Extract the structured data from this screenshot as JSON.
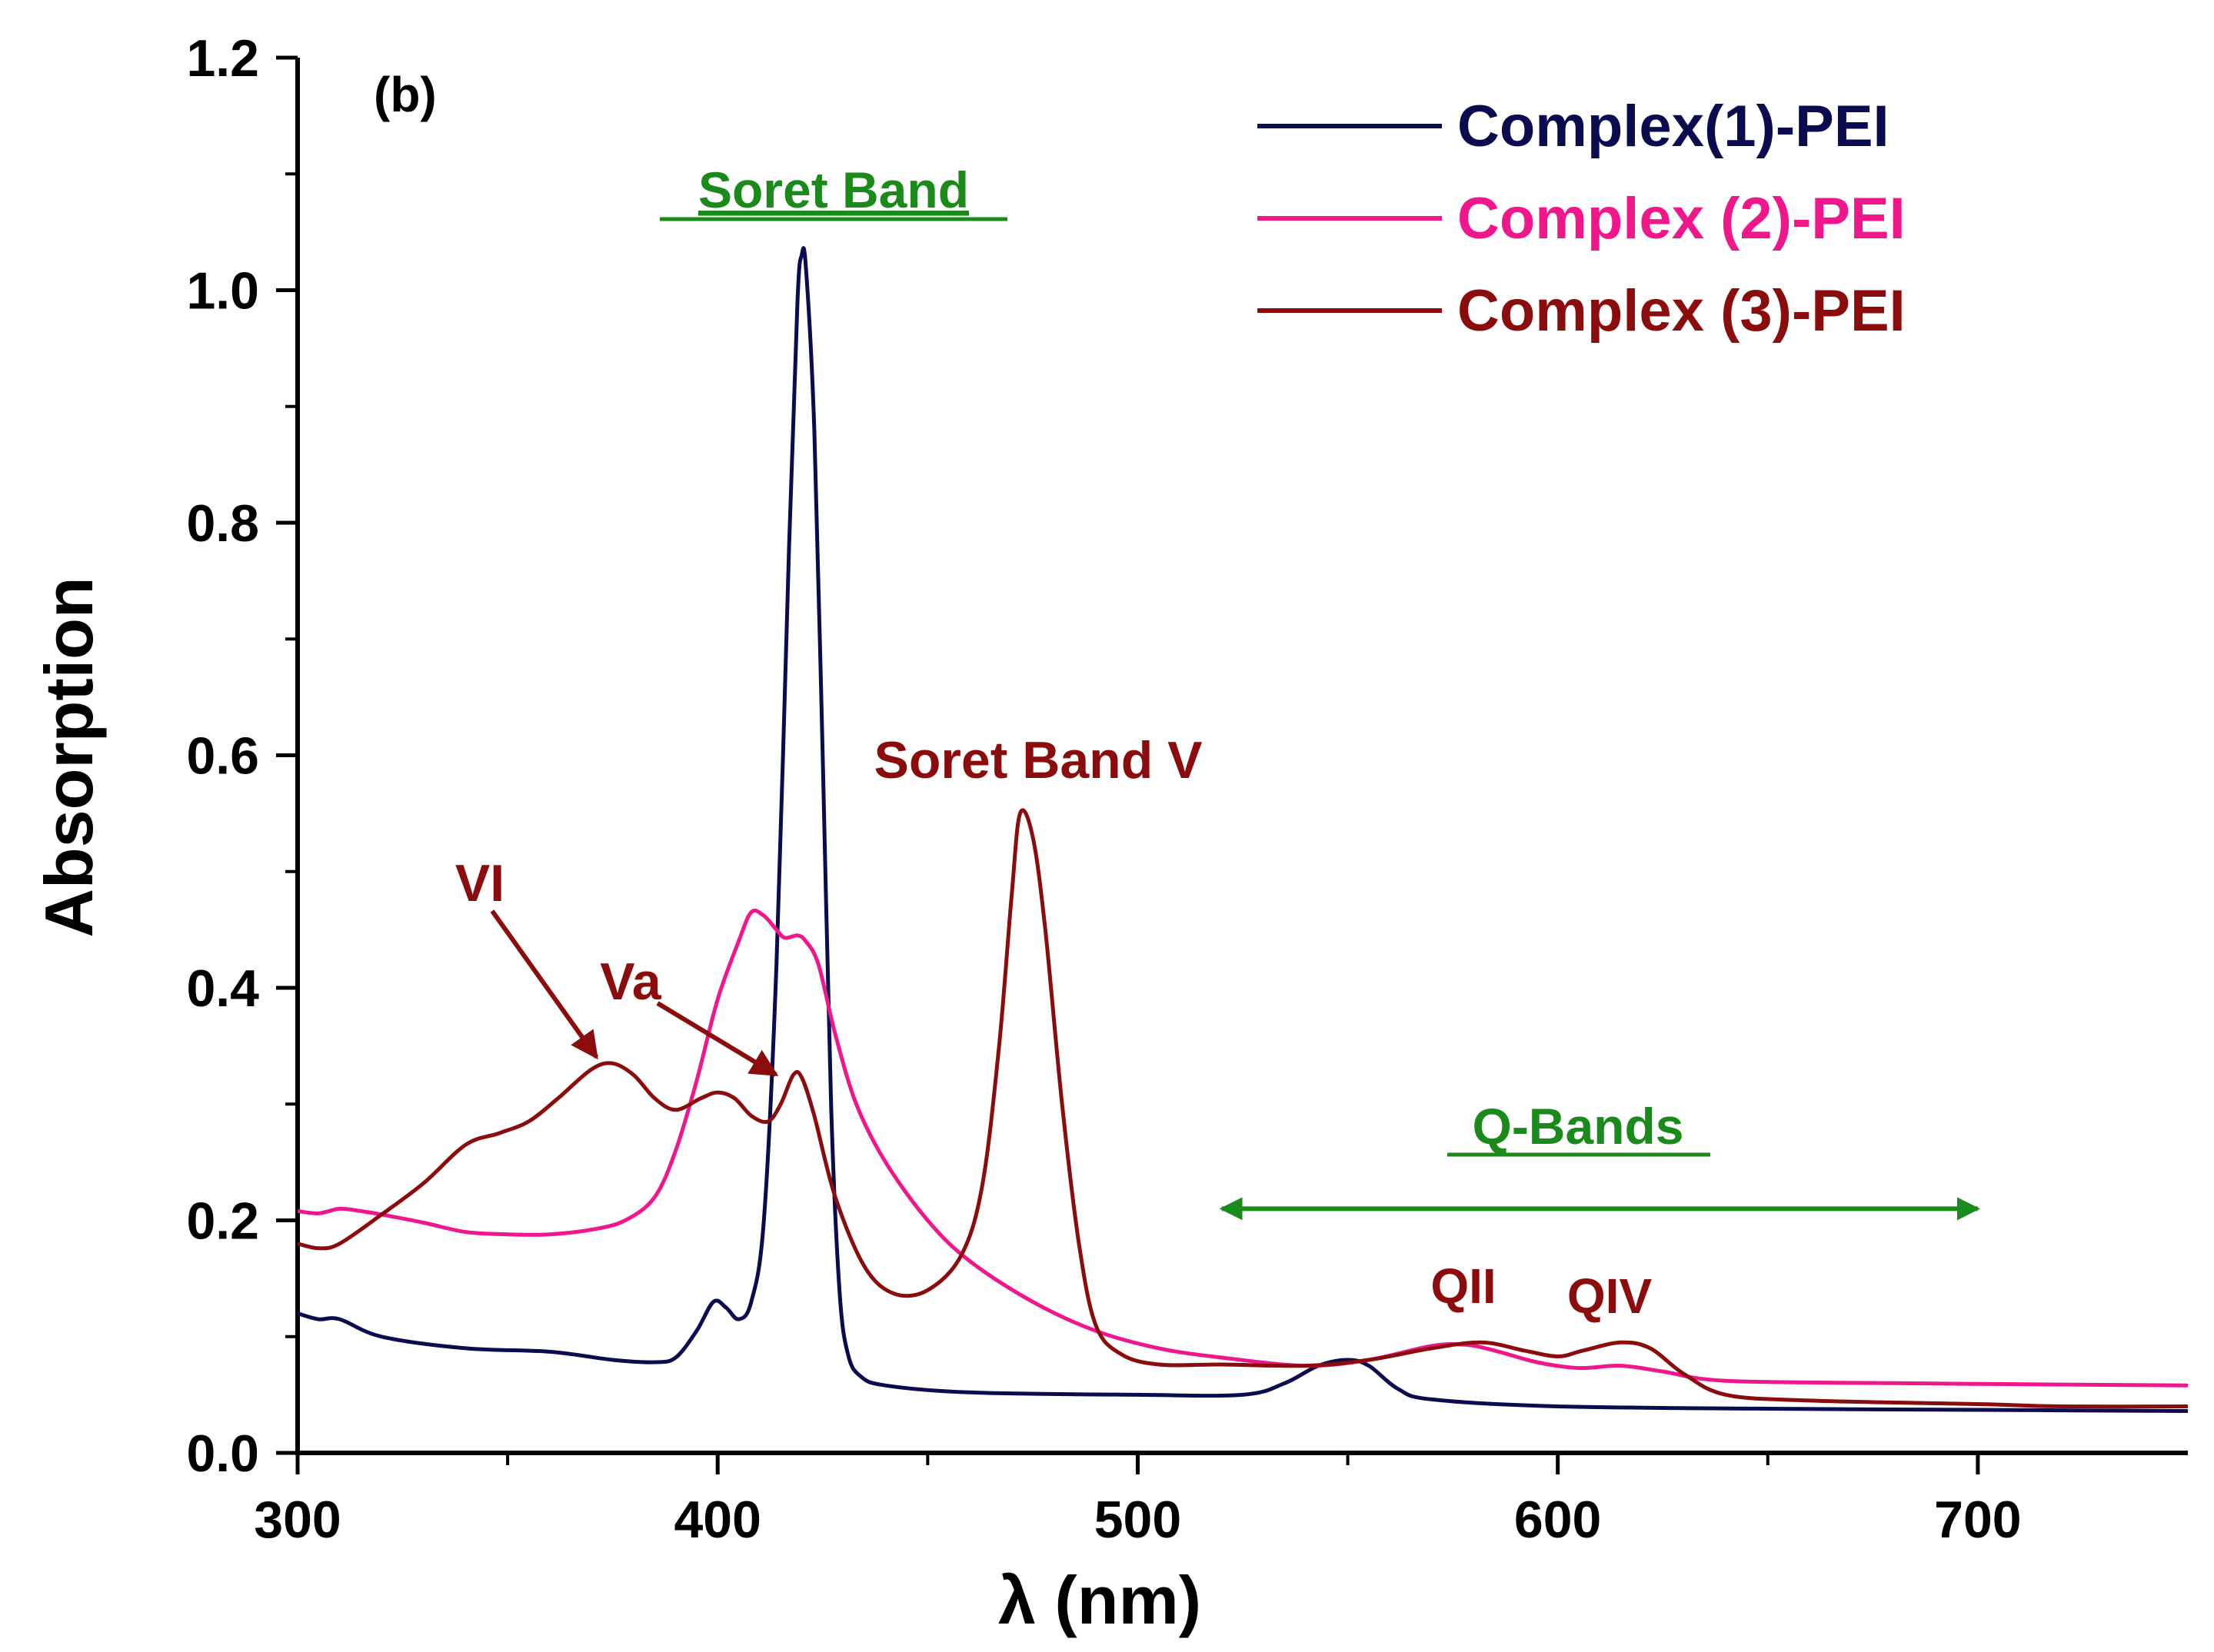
{
  "chart_data": {
    "type": "line",
    "panel_label": "(b)",
    "xlabel": "λ (nm)",
    "ylabel": "Absorption",
    "xlim": [
      300,
      750
    ],
    "ylim": [
      0,
      1.2
    ],
    "x_ticks": [
      300,
      400,
      500,
      600,
      700
    ],
    "x_tick_labels": [
      "300",
      "400",
      "500",
      "600",
      "700"
    ],
    "y_ticks": [
      0,
      0.2,
      0.4,
      0.6,
      0.8,
      1.0,
      1.2
    ],
    "y_tick_labels": [
      "0.0",
      "0.2",
      "0.4",
      "0.6",
      "0.8",
      "1.0",
      "1.2"
    ],
    "grid": false,
    "legend_position": "top-right",
    "series": [
      {
        "name": "Complex(1)-PEI",
        "color": "#0b0b4f",
        "points": [
          [
            300,
            0.12
          ],
          [
            305,
            0.115
          ],
          [
            310,
            0.115
          ],
          [
            320,
            0.1
          ],
          [
            340,
            0.09
          ],
          [
            360,
            0.087
          ],
          [
            375,
            0.08
          ],
          [
            385,
            0.078
          ],
          [
            390,
            0.082
          ],
          [
            395,
            0.105
          ],
          [
            399,
            0.13
          ],
          [
            402,
            0.125
          ],
          [
            405,
            0.115
          ],
          [
            408,
            0.13
          ],
          [
            411,
            0.2
          ],
          [
            414,
            0.42
          ],
          [
            417,
            0.78
          ],
          [
            419,
            0.99
          ],
          [
            420,
            1.03
          ],
          [
            421,
            1.02
          ],
          [
            423,
            0.88
          ],
          [
            425,
            0.6
          ],
          [
            427,
            0.3
          ],
          [
            429,
            0.14
          ],
          [
            431,
            0.085
          ],
          [
            434,
            0.066
          ],
          [
            440,
            0.058
          ],
          [
            460,
            0.052
          ],
          [
            500,
            0.05
          ],
          [
            525,
            0.05
          ],
          [
            535,
            0.06
          ],
          [
            543,
            0.075
          ],
          [
            550,
            0.08
          ],
          [
            555,
            0.075
          ],
          [
            562,
            0.055
          ],
          [
            570,
            0.046
          ],
          [
            600,
            0.04
          ],
          [
            650,
            0.038
          ],
          [
            700,
            0.037
          ],
          [
            750,
            0.036
          ]
        ]
      },
      {
        "name": "Complex (2)-PEI",
        "color": "#f0168c",
        "points": [
          [
            300,
            0.208
          ],
          [
            305,
            0.206
          ],
          [
            310,
            0.21
          ],
          [
            315,
            0.208
          ],
          [
            320,
            0.205
          ],
          [
            330,
            0.198
          ],
          [
            340,
            0.19
          ],
          [
            350,
            0.188
          ],
          [
            360,
            0.188
          ],
          [
            370,
            0.192
          ],
          [
            378,
            0.2
          ],
          [
            385,
            0.22
          ],
          [
            390,
            0.26
          ],
          [
            395,
            0.32
          ],
          [
            400,
            0.39
          ],
          [
            405,
            0.44
          ],
          [
            408,
            0.465
          ],
          [
            411,
            0.462
          ],
          [
            414,
            0.45
          ],
          [
            416,
            0.443
          ],
          [
            419,
            0.445
          ],
          [
            421,
            0.44
          ],
          [
            424,
            0.42
          ],
          [
            428,
            0.36
          ],
          [
            433,
            0.3
          ],
          [
            440,
            0.25
          ],
          [
            450,
            0.2
          ],
          [
            460,
            0.165
          ],
          [
            475,
            0.13
          ],
          [
            490,
            0.105
          ],
          [
            505,
            0.09
          ],
          [
            520,
            0.082
          ],
          [
            540,
            0.075
          ],
          [
            555,
            0.08
          ],
          [
            570,
            0.092
          ],
          [
            578,
            0.093
          ],
          [
            585,
            0.088
          ],
          [
            595,
            0.078
          ],
          [
            605,
            0.073
          ],
          [
            615,
            0.075
          ],
          [
            625,
            0.07
          ],
          [
            640,
            0.062
          ],
          [
            680,
            0.06
          ],
          [
            750,
            0.058
          ]
        ]
      },
      {
        "name": "Complex (3)-PEI",
        "color": "#8b0c0c",
        "points": [
          [
            300,
            0.18
          ],
          [
            305,
            0.176
          ],
          [
            310,
            0.18
          ],
          [
            320,
            0.205
          ],
          [
            330,
            0.232
          ],
          [
            340,
            0.265
          ],
          [
            348,
            0.275
          ],
          [
            355,
            0.285
          ],
          [
            362,
            0.305
          ],
          [
            370,
            0.33
          ],
          [
            375,
            0.335
          ],
          [
            380,
            0.325
          ],
          [
            385,
            0.305
          ],
          [
            390,
            0.295
          ],
          [
            396,
            0.305
          ],
          [
            400,
            0.31
          ],
          [
            404,
            0.305
          ],
          [
            408,
            0.29
          ],
          [
            412,
            0.285
          ],
          [
            415,
            0.3
          ],
          [
            418,
            0.325
          ],
          [
            420,
            0.323
          ],
          [
            423,
            0.29
          ],
          [
            428,
            0.22
          ],
          [
            435,
            0.16
          ],
          [
            442,
            0.137
          ],
          [
            450,
            0.14
          ],
          [
            458,
            0.17
          ],
          [
            463,
            0.23
          ],
          [
            467,
            0.35
          ],
          [
            470,
            0.48
          ],
          [
            472,
            0.55
          ],
          [
            475,
            0.53
          ],
          [
            478,
            0.45
          ],
          [
            482,
            0.3
          ],
          [
            486,
            0.18
          ],
          [
            490,
            0.11
          ],
          [
            496,
            0.085
          ],
          [
            505,
            0.076
          ],
          [
            520,
            0.076
          ],
          [
            540,
            0.075
          ],
          [
            555,
            0.08
          ],
          [
            570,
            0.09
          ],
          [
            582,
            0.095
          ],
          [
            592,
            0.088
          ],
          [
            600,
            0.083
          ],
          [
            606,
            0.088
          ],
          [
            615,
            0.095
          ],
          [
            622,
            0.09
          ],
          [
            630,
            0.068
          ],
          [
            640,
            0.05
          ],
          [
            660,
            0.045
          ],
          [
            700,
            0.042
          ],
          [
            720,
            0.04
          ],
          [
            750,
            0.04
          ]
        ]
      }
    ],
    "annotations": [
      {
        "text": "Soret Band",
        "color": "#1a8a1a",
        "underline": true
      },
      {
        "text": "Soret Band V",
        "color": "#8b0c0c"
      },
      {
        "text": "VI",
        "color": "#8b0c0c"
      },
      {
        "text": "Va",
        "color": "#8b0c0c"
      },
      {
        "text": "Q-Bands",
        "color": "#1a8a1a",
        "underline": true
      },
      {
        "text": "QII",
        "color": "#8b0c0c"
      },
      {
        "text": "QIV",
        "color": "#8b0c0c"
      }
    ],
    "q_band_arrow_range_nm": [
      520,
      700
    ],
    "arrow_targets": {
      "VI": [
        373,
        0.335
      ],
      "Va": [
        415,
        0.32
      ]
    }
  }
}
